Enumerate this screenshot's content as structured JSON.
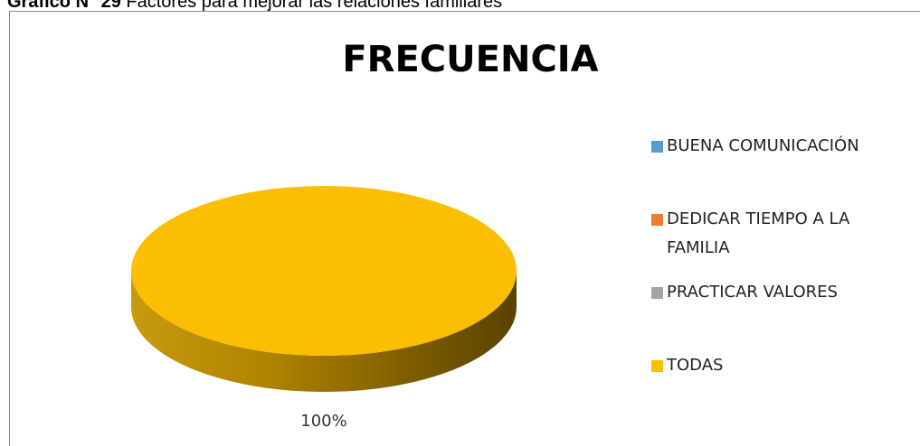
{
  "caption_label": "Gráfico N° 29",
  "caption": "Factores para mejorar las relaciones familiares",
  "chart_data": {
    "type": "pie",
    "title": "FRECUENCIA",
    "categories": [
      "BUENA COMUNICACIÓN",
      "DEDICAR TIEMPO A LA FAMILIA",
      "PRACTICAR VALORES",
      "TODAS"
    ],
    "values": [
      0,
      0,
      0,
      100
    ],
    "value_labels": [
      null,
      null,
      null,
      "100%"
    ],
    "colors": [
      "#5b9bd5",
      "#ed7d31",
      "#a5a5a5",
      "#fbbe00"
    ],
    "legend": "right",
    "three_d": true
  }
}
